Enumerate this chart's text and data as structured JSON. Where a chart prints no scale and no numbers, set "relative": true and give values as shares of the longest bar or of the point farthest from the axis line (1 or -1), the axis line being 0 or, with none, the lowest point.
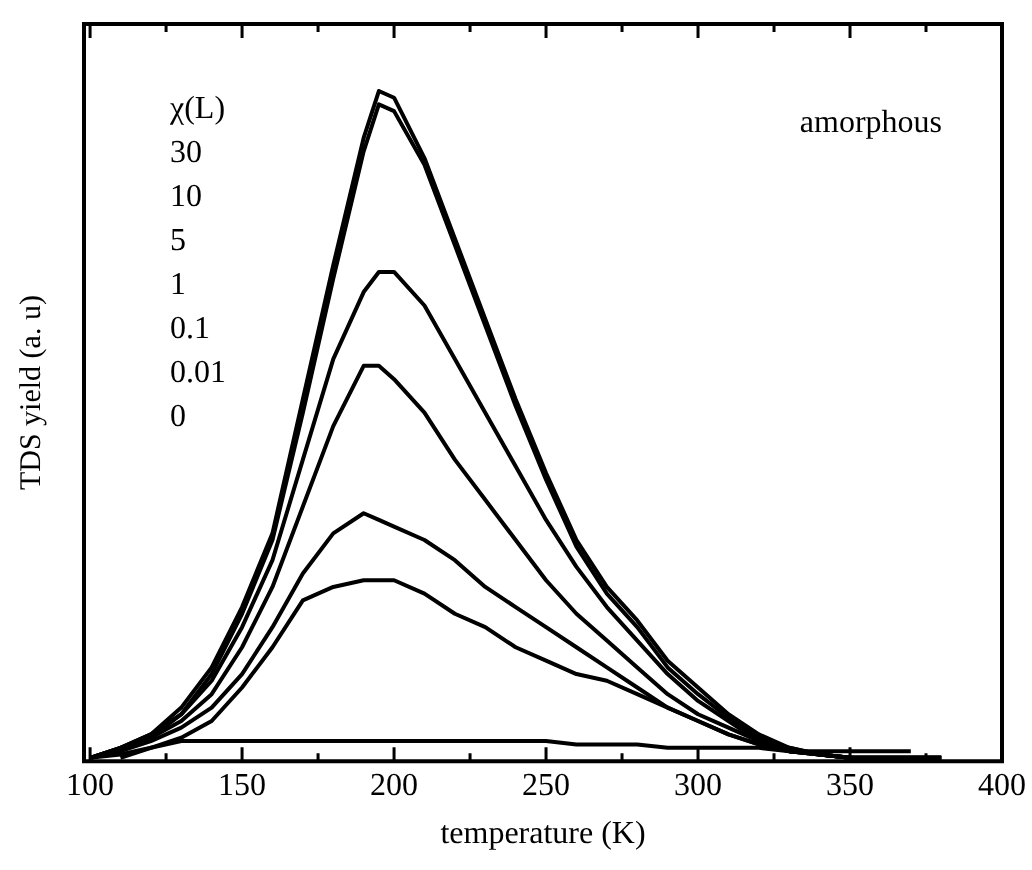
{
  "chart_data": {
    "type": "line",
    "relative": true,
    "xlabel": "temperature (K)",
    "ylabel": "TDS yield (a. u)",
    "xlim": [
      98,
      400
    ],
    "xticks": [
      100,
      {
        "value": 125,
        "label": null
      },
      150,
      {
        "value": 175,
        "label": null
      },
      200,
      {
        "value": 225,
        "label": null
      },
      250,
      {
        "value": 275,
        "label": null
      },
      300,
      {
        "value": 325,
        "label": null
      },
      350,
      {
        "value": 375,
        "label": null
      },
      400
    ],
    "grid": false,
    "legend": false,
    "marker": "none",
    "line_style": "solid",
    "annotations": [
      "amorphous",
      "χ(L)",
      "30",
      "10",
      "5",
      "1",
      "0.1",
      "0.01",
      "0"
    ],
    "x": [
      100,
      110,
      120,
      130,
      140,
      150,
      160,
      170,
      180,
      190,
      195,
      200,
      210,
      220,
      230,
      240,
      250,
      260,
      270,
      280,
      290,
      300,
      310,
      320,
      330,
      340,
      350,
      360,
      370,
      380
    ],
    "series": [
      {
        "color": "#000000",
        "values": [
          0.005,
          0.02,
          0.04,
          0.08,
          0.14,
          0.23,
          0.34,
          0.54,
          0.74,
          0.93,
          1,
          0.99,
          0.9,
          0.78,
          0.66,
          0.54,
          0.43,
          0.33,
          0.26,
          0.21,
          0.15,
          0.11,
          0.07,
          0.04,
          0.02,
          0.01,
          0.005,
          0.005,
          0.005,
          0.005
        ]
      },
      {
        "color": "#000000",
        "values": [
          0.005,
          0.015,
          0.035,
          0.07,
          0.13,
          0.22,
          0.33,
          0.52,
          0.72,
          0.91,
          0.98,
          0.97,
          0.89,
          0.77,
          0.65,
          0.53,
          0.42,
          0.32,
          0.25,
          0.2,
          0.14,
          0.1,
          0.065,
          0.035,
          0.02,
          0.01,
          0.005,
          0.005,
          0.005,
          0.005
        ]
      },
      {
        "color": "#000000",
        "values": [
          0.005,
          0.02,
          0.04,
          0.07,
          0.12,
          0.2,
          0.3,
          0.45,
          0.6,
          0.7,
          0.73,
          0.73,
          0.68,
          0.6,
          0.52,
          0.44,
          0.36,
          0.29,
          0.23,
          0.18,
          0.13,
          0.09,
          0.06,
          0.03,
          0.015,
          0.01,
          0.005,
          0.005,
          0.005,
          0.005
        ]
      },
      {
        "color": "#000000",
        "values": [
          0.005,
          0.02,
          0.035,
          0.06,
          0.1,
          0.17,
          0.26,
          0.38,
          0.5,
          0.59,
          0.59,
          0.57,
          0.52,
          0.45,
          0.39,
          0.33,
          0.27,
          0.22,
          0.18,
          0.14,
          0.1,
          0.07,
          0.05,
          0.03,
          0.015,
          0.01,
          0.005,
          0.005,
          0.005,
          0.005
        ]
      },
      {
        "color": "#000000",
        "values": [
          0.005,
          0.015,
          0.03,
          0.05,
          0.08,
          0.13,
          0.2,
          0.28,
          0.34,
          0.37,
          0.36,
          0.35,
          0.33,
          0.3,
          0.26,
          0.23,
          0.2,
          0.17,
          0.14,
          0.11,
          0.08,
          0.06,
          0.04,
          0.025,
          0.015,
          0.01,
          0.005,
          0.005,
          0.005,
          0.005
        ]
      },
      {
        "color": "#000000",
        "values": [
          0.005,
          0.01,
          0.02,
          0.035,
          0.06,
          0.11,
          0.17,
          0.24,
          0.26,
          0.27,
          0.27,
          0.27,
          0.25,
          0.22,
          0.2,
          0.17,
          0.15,
          0.13,
          0.12,
          0.1,
          0.08,
          0.06,
          0.04,
          0.025,
          0.015,
          0.01,
          0.005,
          0.005,
          0.005,
          0.005
        ]
      },
      {
        "color": "#000000",
        "values": [
          null,
          0.005,
          0.02,
          0.03,
          0.03,
          0.03,
          0.03,
          0.03,
          0.03,
          0.03,
          0.03,
          0.03,
          0.03,
          0.03,
          0.03,
          0.03,
          0.03,
          0.025,
          0.025,
          0.025,
          0.02,
          0.02,
          0.02,
          0.02,
          0.015,
          0.015,
          0.015,
          0.015,
          0.015,
          null
        ]
      }
    ]
  }
}
